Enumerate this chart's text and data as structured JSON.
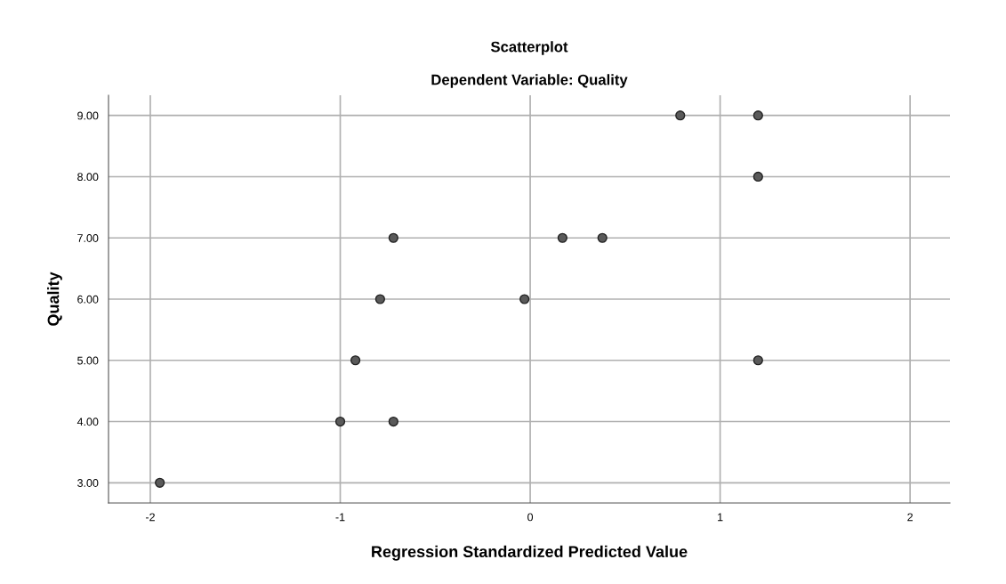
{
  "chart_data": {
    "type": "scatter",
    "title": "Scatterplot",
    "subtitle": "Dependent Variable: Quality",
    "xlabel": "Regression Standardized Predicted Value",
    "ylabel": "Quality",
    "x": [
      0.79,
      1.2,
      1.2,
      -0.72,
      0.17,
      0.38,
      -0.79,
      -0.03,
      -0.92,
      1.2,
      -1.0,
      -0.72,
      -1.95
    ],
    "values": [
      9,
      9,
      8,
      7,
      7,
      7,
      6,
      6,
      5,
      5,
      4,
      4,
      3
    ],
    "color": "#5a5a5a",
    "marker": "circle",
    "grid": true,
    "xlim": [
      -2.22,
      2.21
    ],
    "xticks": [
      -2,
      -1,
      0,
      1,
      2
    ],
    "ylim": [
      2.67,
      9.33
    ],
    "yticks": [
      {
        "value": 3,
        "label": "3.00"
      },
      {
        "value": 4,
        "label": "4.00"
      },
      {
        "value": 5,
        "label": "5.00"
      },
      {
        "value": 6,
        "label": "6.00"
      },
      {
        "value": 7,
        "label": "7.00"
      },
      {
        "value": 8,
        "label": "8.00"
      },
      {
        "value": 9,
        "label": "9.00"
      }
    ]
  }
}
